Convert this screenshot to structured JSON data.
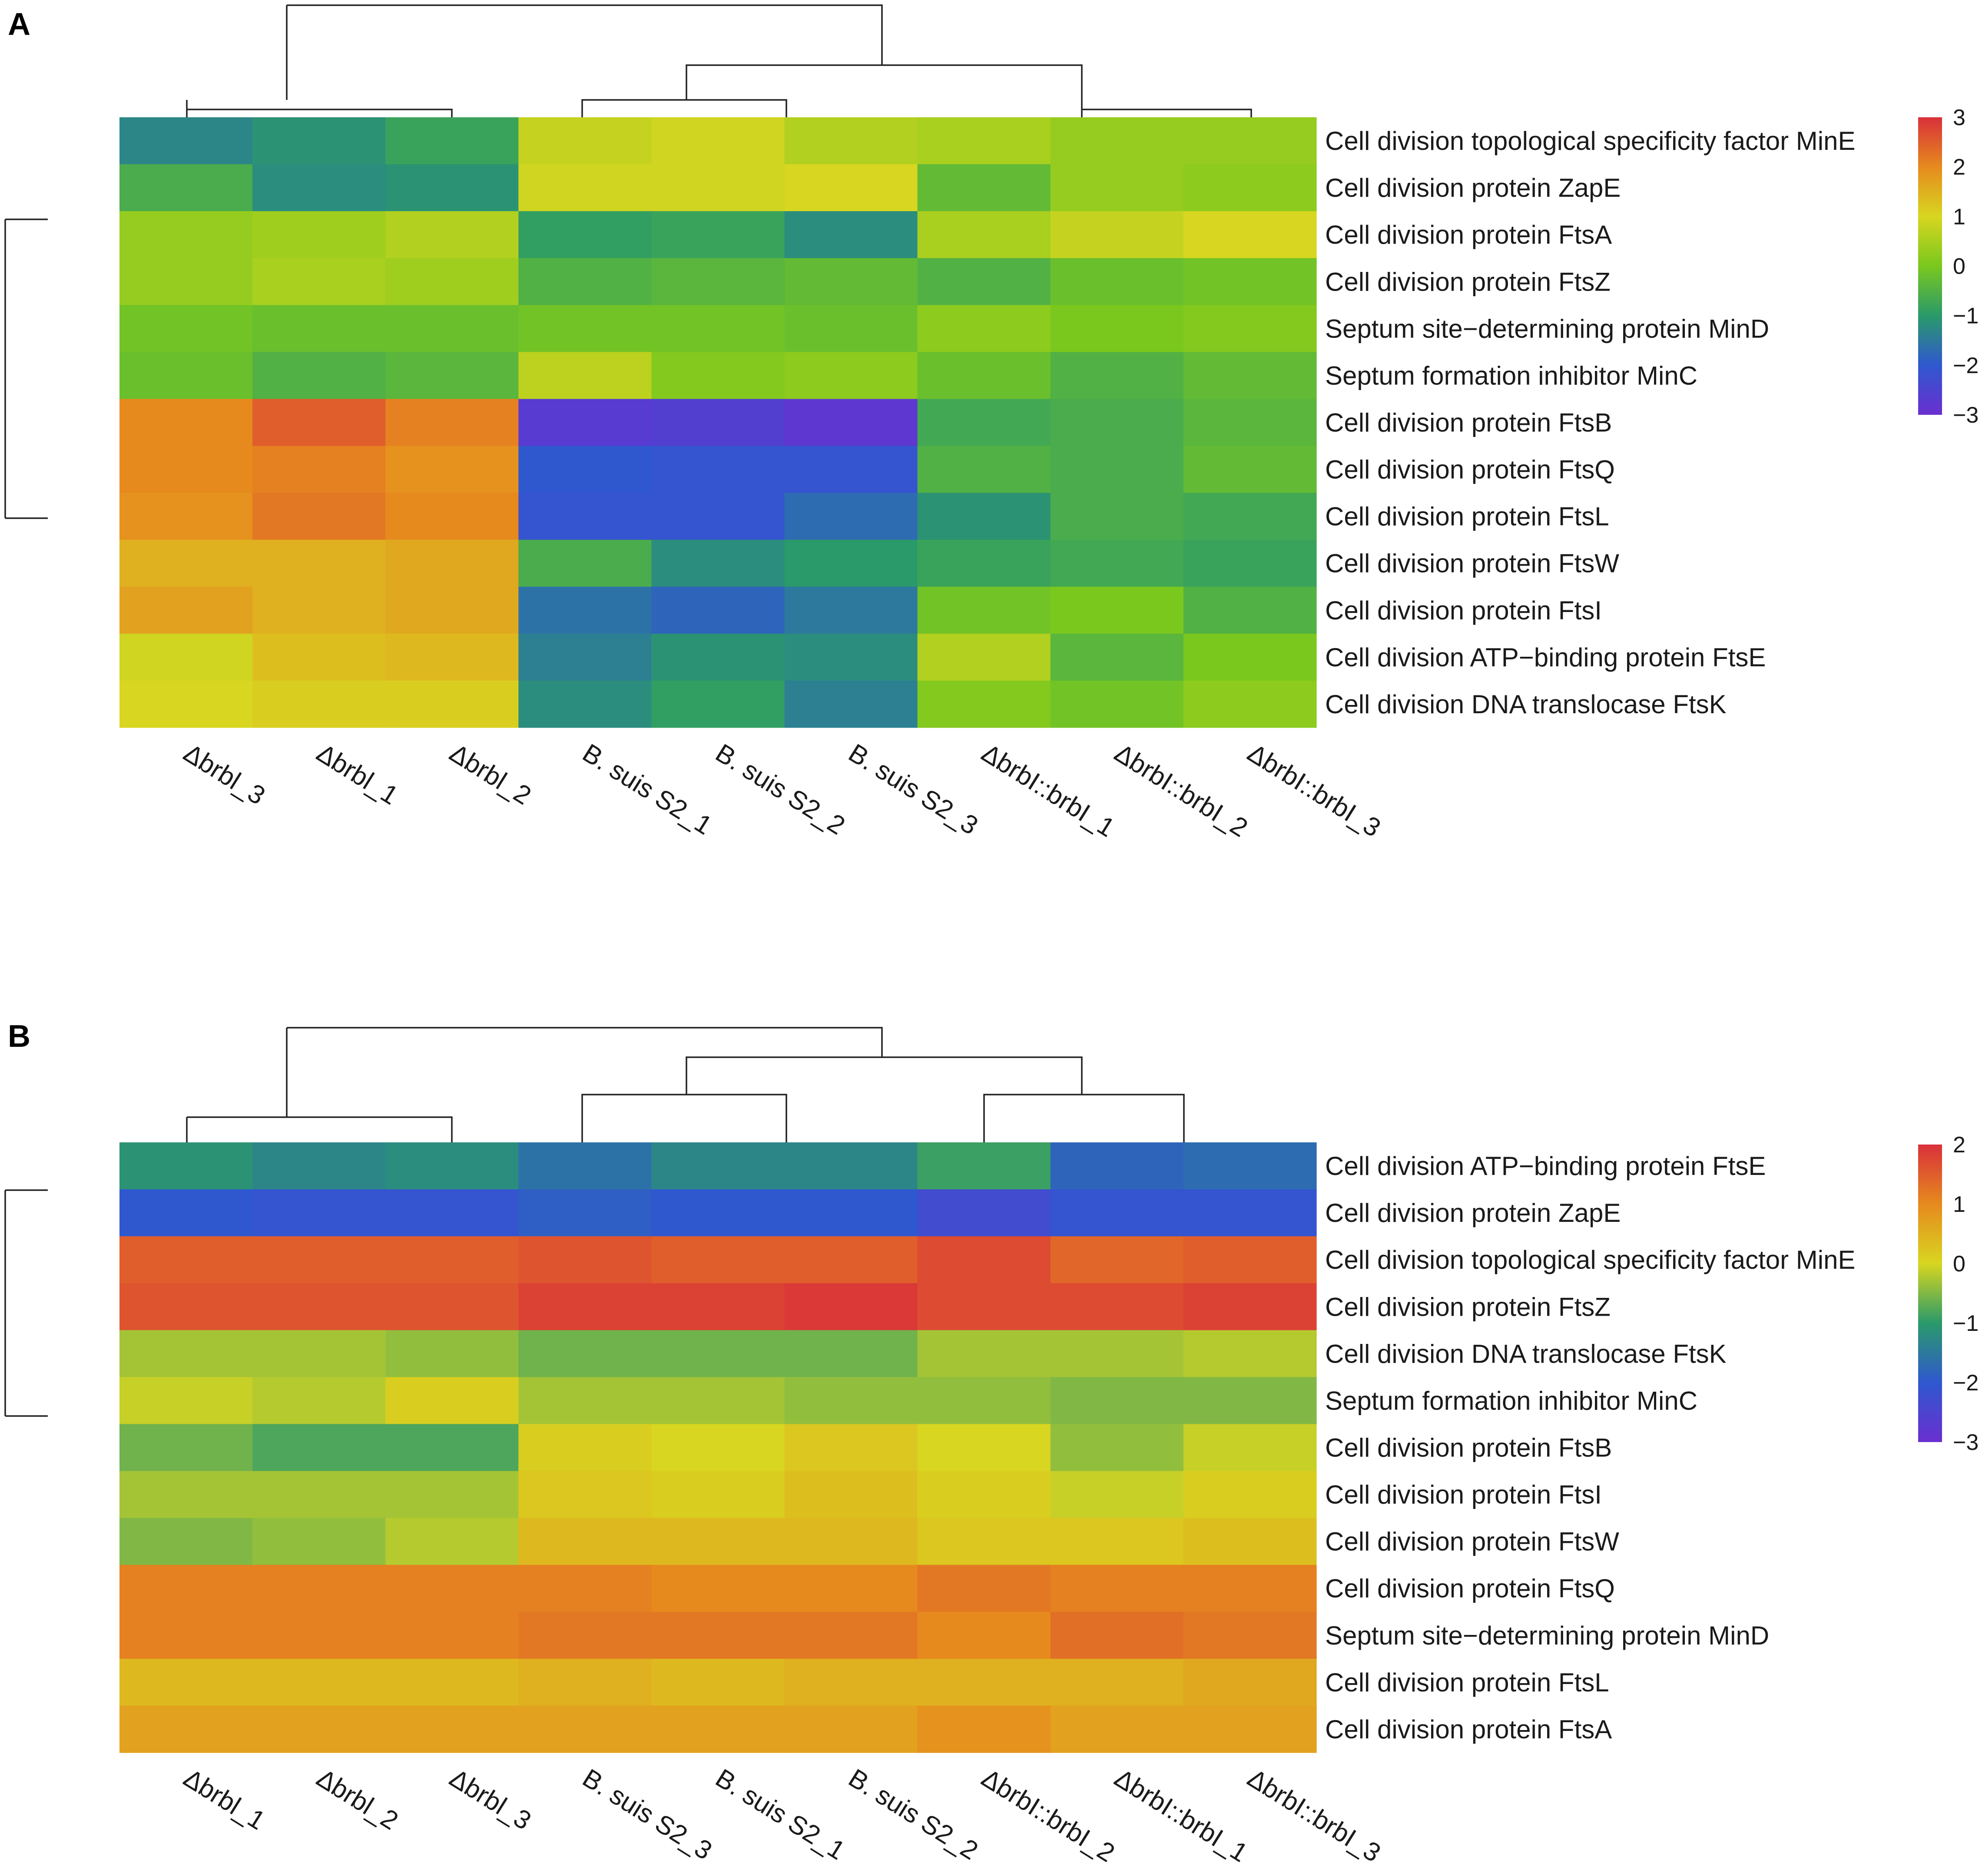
{
  "chart_data": [
    {
      "type": "heatmap",
      "panel": "A",
      "columns": [
        "Δbrbl_3",
        "Δbrbl_1",
        "Δbrbl_2",
        "B. suis S2_1",
        "B. suis S2_2",
        "B. suis S2_3",
        "ΔbrbI::brbI_1",
        "ΔbrbI::brbI_2",
        "ΔbrbI::brbI_3"
      ],
      "rows": [
        "Cell division topological specificity factor MinE",
        "Cell division protein ZapE",
        "Cell division protein FtsA",
        "Cell division protein FtsZ",
        "Septum site−determining protein MinD",
        "Septum formation inhibitor MinC",
        "Cell division protein FtsB",
        "Cell division protein FtsQ",
        "Cell division protein FtsL",
        "Cell division protein FtsW",
        "Cell division protein FtsI",
        "Cell division ATP−binding protein FtsE",
        "Cell division DNA translocase FtsK"
      ],
      "values": [
        [
          -1.3,
          -1.1,
          -0.8,
          0.8,
          0.9,
          0.6,
          0.5,
          0.3,
          0.3
        ],
        [
          -0.6,
          -1.2,
          -1.1,
          0.9,
          0.9,
          1.0,
          -0.3,
          0.3,
          0.2
        ],
        [
          0.3,
          0.4,
          0.6,
          -0.9,
          -0.8,
          -1.2,
          0.5,
          0.8,
          1.0
        ],
        [
          0.3,
          0.5,
          0.4,
          -0.5,
          -0.4,
          -0.3,
          -0.5,
          -0.2,
          -0.1
        ],
        [
          -0.1,
          -0.2,
          -0.2,
          -0.1,
          -0.1,
          -0.2,
          0.2,
          0.0,
          0.1
        ],
        [
          -0.2,
          -0.5,
          -0.4,
          0.7,
          0.1,
          0.2,
          -0.2,
          -0.5,
          -0.3
        ],
        [
          2.0,
          2.5,
          2.1,
          -2.7,
          -2.6,
          -2.8,
          -0.7,
          -0.6,
          -0.4
        ],
        [
          2.0,
          2.1,
          1.9,
          -2.0,
          -2.1,
          -2.1,
          -0.5,
          -0.6,
          -0.3
        ],
        [
          1.9,
          2.2,
          2.0,
          -2.1,
          -2.1,
          -1.7,
          -1.1,
          -0.6,
          -0.7
        ],
        [
          1.5,
          1.5,
          1.6,
          -0.6,
          -1.2,
          -1.0,
          -0.8,
          -0.7,
          -0.8
        ],
        [
          1.7,
          1.5,
          1.6,
          -1.6,
          -1.8,
          -1.5,
          -0.1,
          0.0,
          -0.5
        ],
        [
          0.9,
          1.3,
          1.4,
          -1.4,
          -1.1,
          -1.2,
          0.6,
          -0.4,
          0.0
        ],
        [
          1.0,
          1.1,
          1.1,
          -1.2,
          -0.9,
          -1.4,
          0.1,
          -0.1,
          0.2
        ]
      ],
      "colorbar": {
        "min": -3,
        "max": 3,
        "ticks": [
          "3",
          "2",
          "1",
          "0",
          "−1",
          "−2",
          "−3"
        ]
      },
      "col_dendrogram": "true",
      "row_dendrogram": "true"
    },
    {
      "type": "heatmap",
      "panel": "B",
      "columns": [
        "Δbrbl_1",
        "Δbrbl_2",
        "Δbrbl_3",
        "B. suis S2_3",
        "B. suis S2_1",
        "B. suis S2_2",
        "ΔbrbI::brbI_2",
        "ΔbrbI::brbI_1",
        "ΔbrbI::brbI_3"
      ],
      "rows": [
        "Cell division ATP−binding protein FtsE",
        "Cell division protein ZapE",
        "Cell division topological specificity factor MinE",
        "Cell division protein FtsZ",
        "Cell division DNA translocase FtsK",
        "Septum formation inhibitor MinC",
        "Cell division protein FtsB",
        "Cell division protein FtsI",
        "Cell division protein FtsW",
        "Cell division protein FtsQ",
        "Septum site−determining protein MinD",
        "Cell division protein FtsL",
        "Cell division protein FtsA"
      ],
      "values": [
        [
          -1.1,
          -1.3,
          -1.2,
          -1.6,
          -1.3,
          -1.3,
          -0.9,
          -1.8,
          -1.7
        ],
        [
          -2.0,
          -2.1,
          -2.1,
          -1.9,
          -2.0,
          -2.0,
          -2.3,
          -2.1,
          -2.1
        ],
        [
          1.5,
          1.5,
          1.5,
          1.6,
          1.5,
          1.5,
          1.7,
          1.4,
          1.5
        ],
        [
          1.6,
          1.6,
          1.6,
          1.8,
          1.8,
          1.9,
          1.7,
          1.7,
          1.8
        ],
        [
          -0.3,
          -0.3,
          -0.4,
          -0.6,
          -0.6,
          -0.6,
          -0.3,
          -0.3,
          -0.2
        ],
        [
          -0.1,
          -0.2,
          0.1,
          -0.3,
          -0.3,
          -0.4,
          -0.4,
          -0.5,
          -0.5
        ],
        [
          -0.6,
          -0.8,
          -0.8,
          0.1,
          0.0,
          0.2,
          0.0,
          -0.4,
          -0.1
        ],
        [
          -0.3,
          -0.3,
          -0.3,
          0.2,
          0.1,
          0.3,
          0.1,
          -0.1,
          0.1
        ],
        [
          -0.5,
          -0.4,
          -0.2,
          0.4,
          0.4,
          0.4,
          0.2,
          0.2,
          0.3
        ],
        [
          1.1,
          1.1,
          1.1,
          1.1,
          1.0,
          1.0,
          1.2,
          1.1,
          1.1
        ],
        [
          1.1,
          1.1,
          1.1,
          1.2,
          1.2,
          1.2,
          1.0,
          1.3,
          1.2
        ],
        [
          0.4,
          0.4,
          0.4,
          0.5,
          0.4,
          0.5,
          0.5,
          0.5,
          0.6
        ],
        [
          0.7,
          0.7,
          0.7,
          0.7,
          0.7,
          0.7,
          0.9,
          0.7,
          0.7
        ]
      ],
      "colorbar": {
        "min": -3,
        "max": 2,
        "ticks": [
          "2",
          "1",
          "0",
          "−1",
          "−2",
          "−3"
        ]
      },
      "col_dendrogram": "true",
      "row_dendrogram": "true"
    }
  ]
}
